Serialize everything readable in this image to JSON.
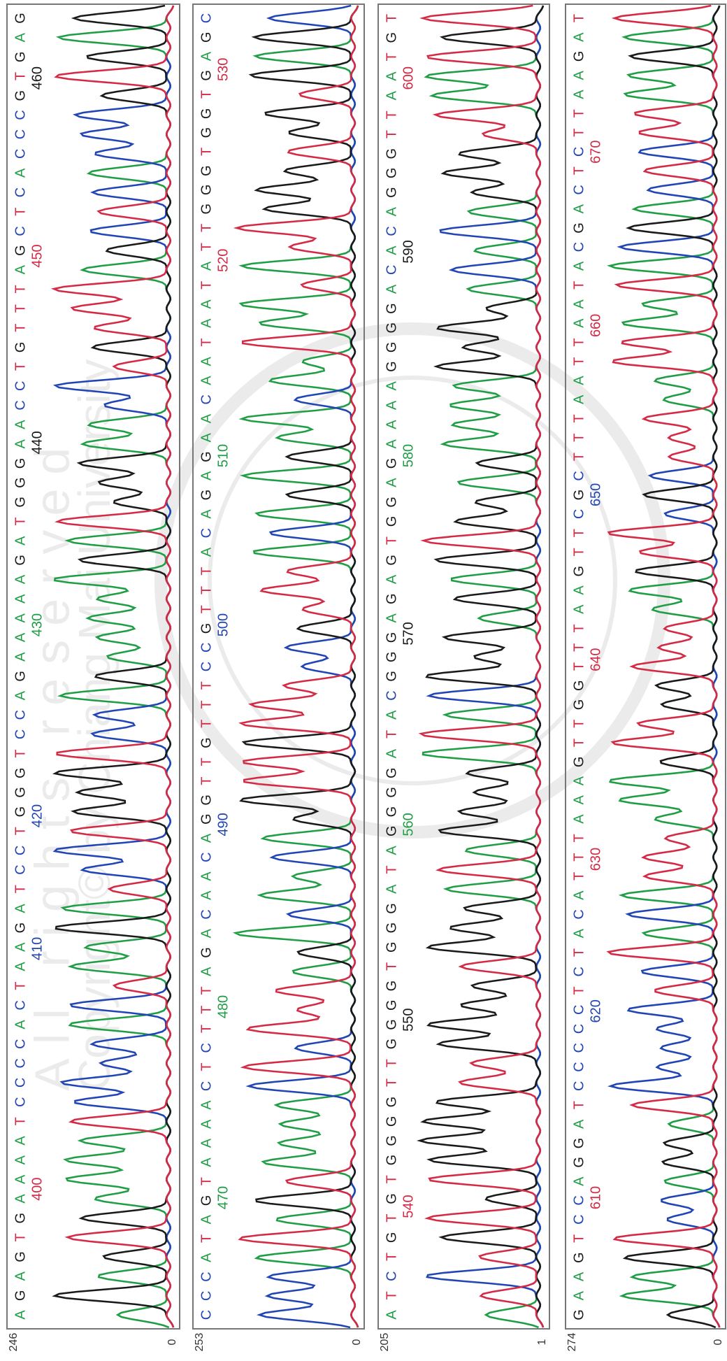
{
  "panels": [
    {
      "y_max": 246,
      "y_min": 0,
      "bases": [
        "A",
        "G",
        "A",
        "G",
        "T",
        "G",
        "A",
        "A",
        "A",
        "A",
        "T",
        "C",
        "C",
        "C",
        "C",
        "A",
        "C",
        "T",
        "A",
        "A",
        "G",
        "A",
        "T",
        "C",
        "C",
        "T",
        "G",
        "G",
        "G",
        "T",
        "C",
        "C",
        "A",
        "G",
        "A",
        "A",
        "A",
        "A",
        "A",
        "G",
        "A",
        "T",
        "G",
        "G",
        "G",
        "A",
        "A",
        "C",
        "C",
        "T",
        "G",
        "T",
        "T",
        "T",
        "A",
        "G",
        "C",
        "T",
        "C",
        "A",
        "C",
        "C",
        "C",
        "G",
        "T",
        "G",
        "A",
        "G"
      ],
      "positions": [
        "400",
        "410",
        "420",
        "430",
        "440",
        "450",
        "460"
      ]
    },
    {
      "y_max": 253,
      "y_min": 0,
      "bases": [
        "C",
        "C",
        "C",
        "A",
        "T",
        "A",
        "G",
        "T",
        "A",
        "A",
        "A",
        "A",
        "C",
        "T",
        "C",
        "T",
        "T",
        "T",
        "A",
        "G",
        "A",
        "C",
        "A",
        "A",
        "C",
        "A",
        "G",
        "G",
        "T",
        "T",
        "G",
        "T",
        "T",
        "T",
        "C",
        "C",
        "G",
        "T",
        "T",
        "T",
        "A",
        "C",
        "A",
        "G",
        "A",
        "G",
        "A",
        "A",
        "C",
        "A",
        "A",
        "T",
        "A",
        "A",
        "T",
        "A",
        "T",
        "T",
        "G",
        "G",
        "G",
        "T",
        "G",
        "G",
        "T",
        "G",
        "A",
        "G",
        "C"
      ],
      "positions": [
        "470",
        "480",
        "490",
        "500",
        "510",
        "520",
        "530"
      ]
    },
    {
      "y_max": 205,
      "y_min": 1,
      "bases": [
        "A",
        "T",
        "C",
        "T",
        "G",
        "T",
        "G",
        "T",
        "G",
        "G",
        "G",
        "G",
        "T",
        "T",
        "G",
        "G",
        "G",
        "G",
        "T",
        "G",
        "G",
        "G",
        "A",
        "T",
        "A",
        "G",
        "G",
        "G",
        "G",
        "A",
        "T",
        "A",
        "C",
        "G",
        "G",
        "G",
        "A",
        "G",
        "A",
        "G",
        "T",
        "G",
        "G",
        "A",
        "G",
        "A",
        "A",
        "A",
        "A",
        "G",
        "G",
        "G",
        "G",
        "A",
        "C",
        "A",
        "C",
        "A",
        "G",
        "G",
        "G",
        "T",
        "T",
        "A",
        "A",
        "T",
        "G",
        "T"
      ],
      "positions": [
        "540",
        "550",
        "560",
        "570",
        "580",
        "590",
        "600"
      ]
    },
    {
      "y_max": 274,
      "y_min": 0,
      "bases": [
        "G",
        "A",
        "A",
        "G",
        "T",
        "C",
        "C",
        "A",
        "G",
        "G",
        "A",
        "T",
        "C",
        "C",
        "C",
        "C",
        "C",
        "T",
        "C",
        "T",
        "A",
        "C",
        "A",
        "T",
        "T",
        "T",
        "A",
        "A",
        "A",
        "G",
        "T",
        "T",
        "G",
        "G",
        "T",
        "T",
        "T",
        "A",
        "A",
        "G",
        "T",
        "T",
        "C",
        "G",
        "C",
        "T",
        "T",
        "T",
        "A",
        "A",
        "T",
        "T",
        "A",
        "A",
        "T",
        "A",
        "C",
        "G",
        "A",
        "C",
        "T",
        "C",
        "T",
        "T",
        "A",
        "A",
        "G",
        "A",
        "T"
      ],
      "positions": [
        "610",
        "620",
        "630",
        "640",
        "650",
        "660",
        "670"
      ]
    }
  ],
  "watermark": {
    "line1": "Copyright© by Chiang Mai University",
    "line2": "All rights reserved"
  }
}
